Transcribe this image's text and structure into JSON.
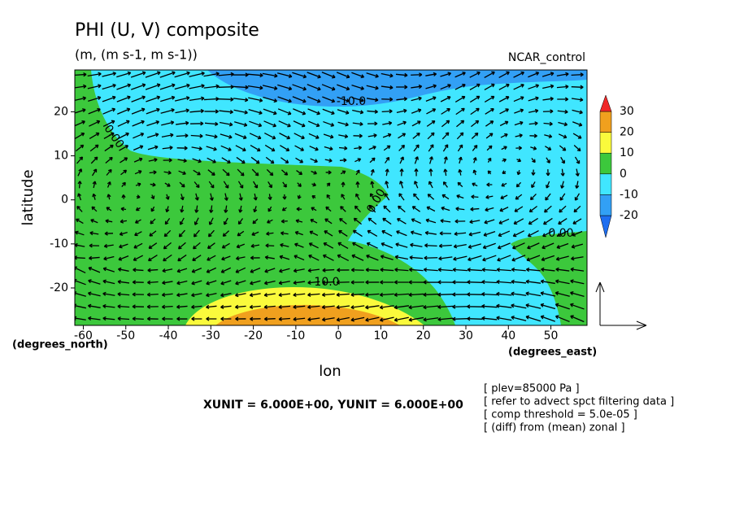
{
  "chart_data": {
    "type": "contour",
    "title": "PHI (U, V) composite",
    "subtitle": "(m, (m s-1, m s-1))",
    "run_label": "NCAR_control",
    "x_label": "lon",
    "y_label": "latitude",
    "x_units": "(degrees_east)",
    "y_units": "(degrees_north)",
    "xlim": [
      -62,
      58.5
    ],
    "ylim": [
      -28.5,
      29.5
    ],
    "xticks": [
      -60,
      -50,
      -40,
      -30,
      -20,
      -10,
      0,
      10,
      20,
      30,
      40,
      50
    ],
    "yticks": [
      -20,
      -10,
      0,
      10,
      20
    ],
    "levels": [
      -20,
      -10,
      0,
      10,
      20,
      30
    ],
    "colors": [
      "#1e6ef0",
      "#32a0f5",
      "#40e6ff",
      "#3cc83c",
      "#fafa3c",
      "#f0a01e",
      "#f02828"
    ],
    "contour_labels": [
      "-10.0",
      "0.00",
      "0.00",
      "0.00",
      "10.0"
    ],
    "vector_scale": "XUNIT = 6.000E+00, YUNIT = 6.000E+00",
    "notes": [
      "[ plev=85000 Pa ]",
      "[ refer to advect spct filtering data ]",
      "[ comp threshold = 5.0e-05 ]",
      "[ (diff) from (mean) zonal ]"
    ]
  }
}
